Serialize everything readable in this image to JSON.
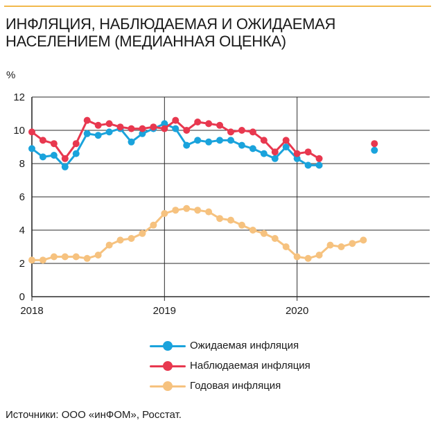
{
  "header": {
    "title": "ИНФЛЯЦИЯ, НАБЛЮДАЕМАЯ И ОЖИДАЕМАЯ\nНАСЕЛЕНИЕМ (МЕДИАННАЯ ОЦЕНКА)",
    "unit": "%"
  },
  "footer": {
    "source": "Источники: ООО «инФОМ», Росстат."
  },
  "chart_data": {
    "type": "line",
    "title": "ИНФЛЯЦИЯ, НАБЛЮДАЕМАЯ И ОЖИДАЕМАЯ НАСЕЛЕНИЕМ (МЕДИАННАЯ ОЦЕНКА)",
    "ylabel": "%",
    "xlabel": "",
    "ylim": [
      0,
      12
    ],
    "yticks": [
      "0",
      "2",
      "4",
      "6",
      "8",
      "10",
      "12"
    ],
    "xlim": [
      "2018-01",
      "2021-01"
    ],
    "xticks": [
      {
        "label": "2018",
        "x": "2018-01"
      },
      {
        "label": "2019",
        "x": "2019-01"
      },
      {
        "label": "2020",
        "x": "2020-01"
      }
    ],
    "grid": true,
    "legend": "bottom",
    "series": [
      {
        "name": "Ожидаемая инфляция",
        "color": "#1aa3dc",
        "points": [
          [
            "2018-01",
            8.9
          ],
          [
            "2018-02",
            8.4
          ],
          [
            "2018-03",
            8.5
          ],
          [
            "2018-04",
            7.8
          ],
          [
            "2018-05",
            8.6
          ],
          [
            "2018-06",
            9.8
          ],
          [
            "2018-07",
            9.7
          ],
          [
            "2018-08",
            9.9
          ],
          [
            "2018-09",
            10.1
          ],
          [
            "2018-10",
            9.3
          ],
          [
            "2018-11",
            9.8
          ],
          [
            "2018-12",
            10.1
          ],
          [
            "2019-01",
            10.4
          ],
          [
            "2019-02",
            10.1
          ],
          [
            "2019-03",
            9.1
          ],
          [
            "2019-04",
            9.4
          ],
          [
            "2019-05",
            9.3
          ],
          [
            "2019-06",
            9.4
          ],
          [
            "2019-07",
            9.4
          ],
          [
            "2019-08",
            9.1
          ],
          [
            "2019-09",
            8.9
          ],
          [
            "2019-10",
            8.6
          ],
          [
            "2019-11",
            8.3
          ],
          [
            "2019-12",
            9.0
          ],
          [
            "2020-01",
            8.3
          ],
          [
            "2020-02",
            7.9
          ],
          [
            "2020-03",
            7.9
          ],
          null,
          null,
          null,
          null,
          [
            "2020-08",
            8.8
          ]
        ]
      },
      {
        "name": "Наблюдаемая инфляция",
        "color": "#e8384f",
        "points": [
          [
            "2018-01",
            9.9
          ],
          [
            "2018-02",
            9.4
          ],
          [
            "2018-03",
            9.2
          ],
          [
            "2018-04",
            8.3
          ],
          [
            "2018-05",
            9.2
          ],
          [
            "2018-06",
            10.6
          ],
          [
            "2018-07",
            10.3
          ],
          [
            "2018-08",
            10.4
          ],
          [
            "2018-09",
            10.2
          ],
          [
            "2018-10",
            10.1
          ],
          [
            "2018-11",
            10.1
          ],
          [
            "2018-12",
            10.2
          ],
          [
            "2019-01",
            10.1
          ],
          [
            "2019-02",
            10.6
          ],
          [
            "2019-03",
            10.0
          ],
          [
            "2019-04",
            10.5
          ],
          [
            "2019-05",
            10.4
          ],
          [
            "2019-06",
            10.3
          ],
          [
            "2019-07",
            9.9
          ],
          [
            "2019-08",
            10.0
          ],
          [
            "2019-09",
            9.9
          ],
          [
            "2019-10",
            9.4
          ],
          [
            "2019-11",
            8.7
          ],
          [
            "2019-12",
            9.4
          ],
          [
            "2020-01",
            8.6
          ],
          [
            "2020-02",
            8.7
          ],
          [
            "2020-03",
            8.3
          ],
          null,
          null,
          null,
          null,
          [
            "2020-08",
            9.2
          ]
        ]
      },
      {
        "name": "Годовая инфляция",
        "color": "#f6c27f",
        "points": [
          [
            "2018-01",
            2.2
          ],
          [
            "2018-02",
            2.2
          ],
          [
            "2018-03",
            2.4
          ],
          [
            "2018-04",
            2.4
          ],
          [
            "2018-05",
            2.4
          ],
          [
            "2018-06",
            2.3
          ],
          [
            "2018-07",
            2.5
          ],
          [
            "2018-08",
            3.1
          ],
          [
            "2018-09",
            3.4
          ],
          [
            "2018-10",
            3.5
          ],
          [
            "2018-11",
            3.8
          ],
          [
            "2018-12",
            4.3
          ],
          [
            "2019-01",
            5.0
          ],
          [
            "2019-02",
            5.2
          ],
          [
            "2019-03",
            5.3
          ],
          [
            "2019-04",
            5.2
          ],
          [
            "2019-05",
            5.1
          ],
          [
            "2019-06",
            4.7
          ],
          [
            "2019-07",
            4.6
          ],
          [
            "2019-08",
            4.3
          ],
          [
            "2019-09",
            4.0
          ],
          [
            "2019-10",
            3.8
          ],
          [
            "2019-11",
            3.5
          ],
          [
            "2019-12",
            3.0
          ],
          [
            "2020-01",
            2.4
          ],
          [
            "2020-02",
            2.3
          ],
          [
            "2020-03",
            2.5
          ],
          [
            "2020-04",
            3.1
          ],
          [
            "2020-05",
            3.0
          ],
          [
            "2020-06",
            3.2
          ],
          [
            "2020-07",
            3.4
          ]
        ]
      }
    ]
  }
}
